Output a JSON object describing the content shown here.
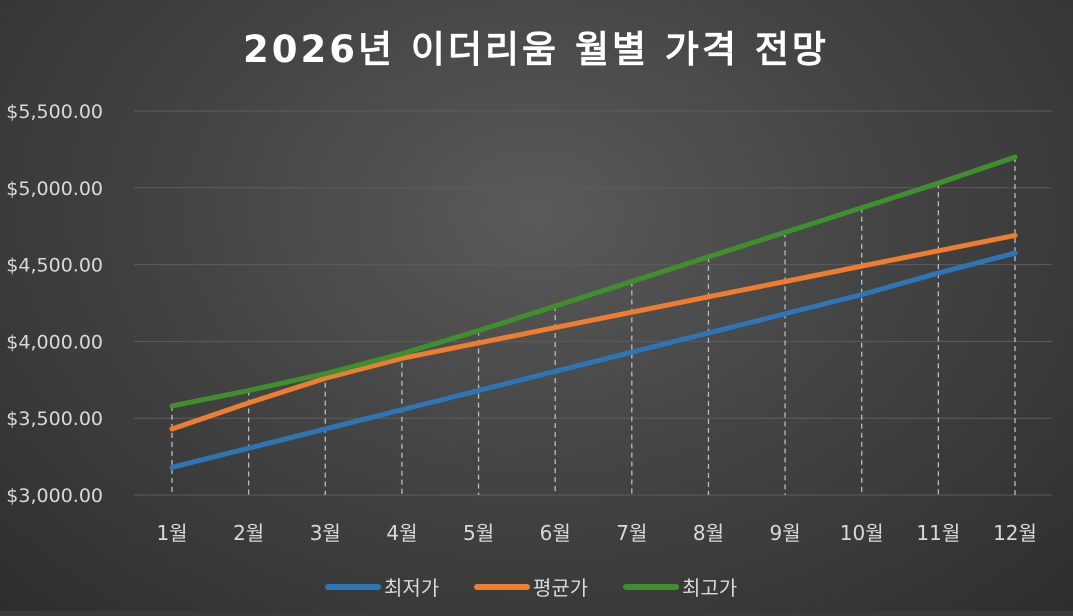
{
  "chart_data": {
    "type": "line",
    "title": "2026년 이더리움 월별 가격 전망",
    "categories": [
      "1월",
      "2월",
      "3월",
      "4월",
      "5월",
      "6월",
      "7월",
      "8월",
      "9월",
      "10월",
      "11월",
      "12월"
    ],
    "series": [
      {
        "name": "최저가",
        "color": "#2e75b6",
        "values": [
          3180,
          3305,
          3430,
          3555,
          3680,
          3805,
          3930,
          4055,
          4180,
          4305,
          4445,
          4575
        ]
      },
      {
        "name": "평균가",
        "color": "#ed7d31",
        "values": [
          3430,
          3600,
          3760,
          3890,
          3990,
          4090,
          4190,
          4290,
          4390,
          4490,
          4590,
          4690
        ]
      },
      {
        "name": "최고가",
        "color": "#3f8f2e",
        "values": [
          3580,
          3680,
          3790,
          3920,
          4070,
          4230,
          4390,
          4550,
          4710,
          4870,
          5030,
          5200
        ]
      }
    ],
    "y_ticks": [
      "$3,000.00",
      "$3,500.00",
      "$4,000.00",
      "$4,500.00",
      "$5,000.00",
      "$5,500.00"
    ],
    "ylim": [
      3000,
      5500
    ],
    "ytick_step": 500,
    "grid": true,
    "drop_lines": true,
    "legend_position": "bottom"
  }
}
